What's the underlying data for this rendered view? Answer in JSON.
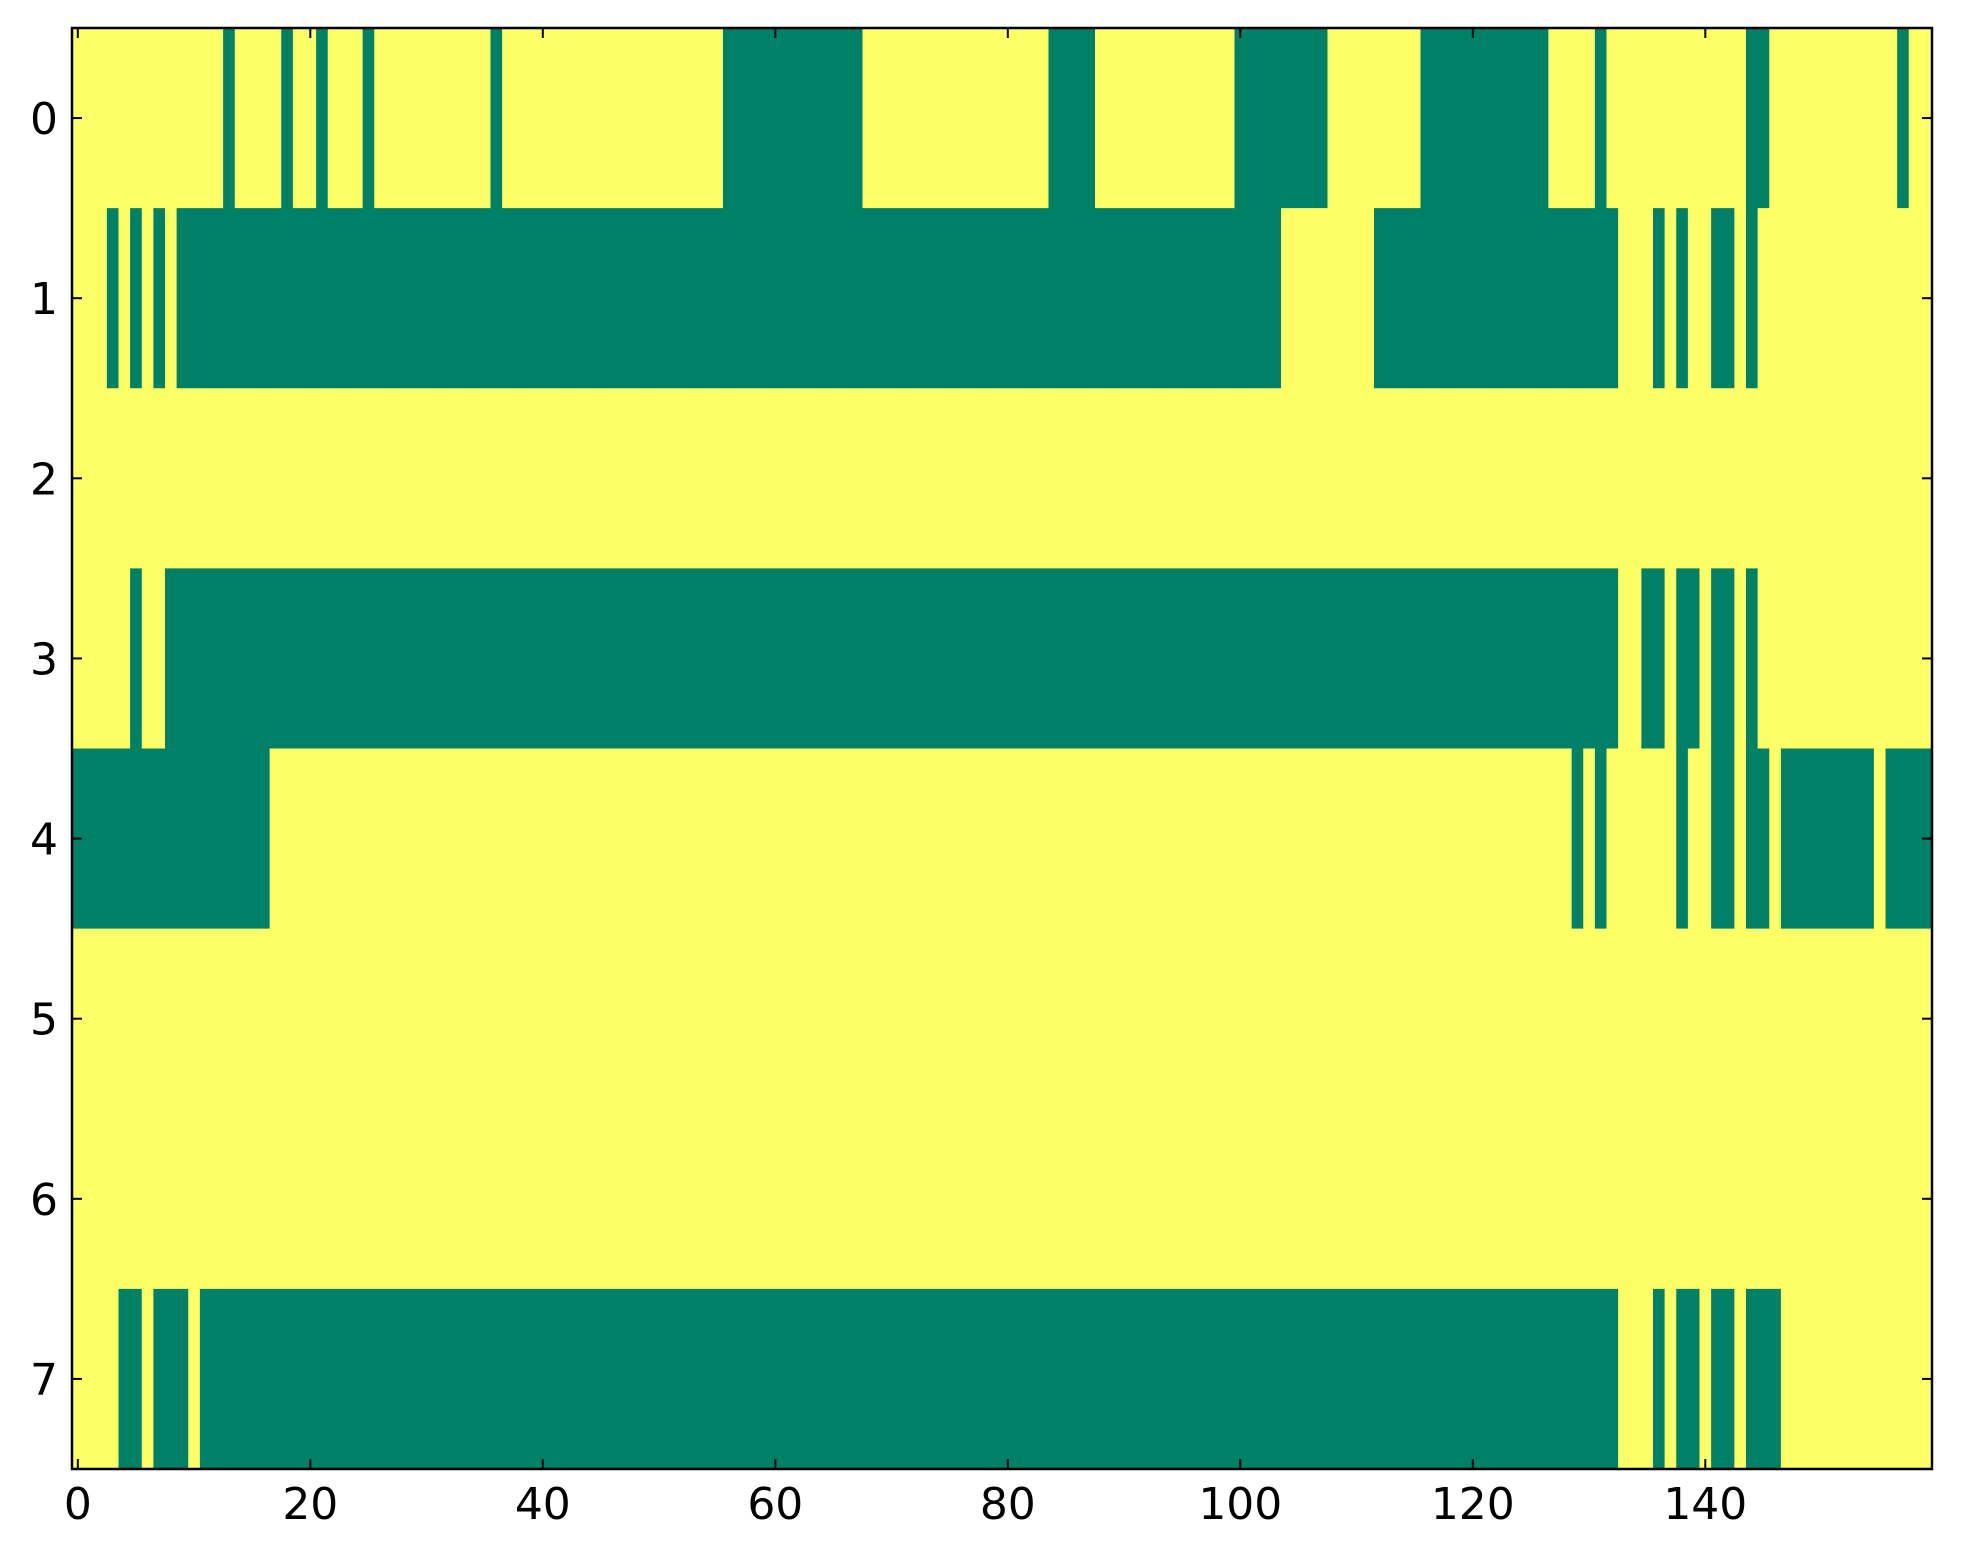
{
  "chart_data": {
    "type": "heatmap",
    "colors": [
      "#008066",
      "#ffff66"
    ],
    "clim": [
      0,
      1
    ],
    "xlim": [
      -0.5,
      159.5
    ],
    "ylim": [
      7.5,
      -0.5
    ],
    "xticks": [
      0,
      20,
      40,
      60,
      80,
      100,
      120,
      140
    ],
    "yticks": [
      0,
      1,
      2,
      3,
      4,
      5,
      6,
      7
    ],
    "z": [
      [
        1,
        1,
        1,
        1,
        1,
        1,
        1,
        1,
        1,
        1,
        1,
        1,
        1,
        0,
        1,
        1,
        1,
        1,
        0,
        1,
        1,
        0,
        1,
        1,
        1,
        0,
        1,
        1,
        1,
        1,
        1,
        1,
        1,
        1,
        1,
        1,
        0,
        1,
        1,
        1,
        1,
        1,
        1,
        1,
        1,
        1,
        1,
        1,
        1,
        1,
        1,
        1,
        1,
        1,
        1,
        1,
        0,
        0,
        0,
        0,
        0,
        0,
        0,
        0,
        0,
        0,
        0,
        0,
        1,
        1,
        1,
        1,
        1,
        1,
        1,
        1,
        1,
        1,
        1,
        1,
        1,
        1,
        1,
        1,
        0,
        0,
        0,
        0,
        1,
        1,
        1,
        1,
        1,
        1,
        1,
        1,
        1,
        1,
        1,
        1,
        0,
        0,
        0,
        0,
        0,
        0,
        0,
        0,
        1,
        1,
        1,
        1,
        1,
        1,
        1,
        1,
        0,
        0,
        0,
        0,
        0,
        0,
        0,
        0,
        0,
        0,
        0,
        1,
        1,
        1,
        1,
        0,
        1,
        1,
        1,
        1,
        1,
        1,
        1,
        1,
        1,
        1,
        1,
        1,
        0,
        0,
        1,
        1,
        1,
        1,
        1,
        1,
        1,
        1,
        1,
        1,
        1,
        0,
        1,
        1
      ],
      [
        1,
        1,
        1,
        0,
        1,
        0,
        1,
        0,
        1,
        0,
        0,
        0,
        0,
        0,
        0,
        0,
        0,
        0,
        0,
        0,
        0,
        0,
        0,
        0,
        0,
        0,
        0,
        0,
        0,
        0,
        0,
        0,
        0,
        0,
        0,
        0,
        0,
        0,
        0,
        0,
        0,
        0,
        0,
        0,
        0,
        0,
        0,
        0,
        0,
        0,
        0,
        0,
        0,
        0,
        0,
        0,
        0,
        0,
        0,
        0,
        0,
        0,
        0,
        0,
        0,
        0,
        0,
        0,
        0,
        0,
        0,
        0,
        0,
        0,
        0,
        0,
        0,
        0,
        0,
        0,
        0,
        0,
        0,
        0,
        0,
        0,
        0,
        0,
        0,
        0,
        0,
        0,
        0,
        0,
        0,
        0,
        0,
        0,
        0,
        0,
        0,
        0,
        0,
        0,
        1,
        1,
        1,
        1,
        1,
        1,
        1,
        1,
        0,
        0,
        0,
        0,
        0,
        0,
        0,
        0,
        0,
        0,
        0,
        0,
        0,
        0,
        0,
        0,
        0,
        0,
        0,
        0,
        0,
        1,
        1,
        1,
        0,
        1,
        0,
        1,
        1,
        0,
        0,
        1,
        0,
        1,
        1,
        1,
        1,
        1,
        1,
        1,
        1,
        1,
        1,
        1,
        1,
        1,
        1,
        1
      ],
      [
        1,
        1,
        1,
        1,
        1,
        1,
        1,
        1,
        1,
        1,
        1,
        1,
        1,
        1,
        1,
        1,
        1,
        1,
        1,
        1,
        1,
        1,
        1,
        1,
        1,
        1,
        1,
        1,
        1,
        1,
        1,
        1,
        1,
        1,
        1,
        1,
        1,
        1,
        1,
        1,
        1,
        1,
        1,
        1,
        1,
        1,
        1,
        1,
        1,
        1,
        1,
        1,
        1,
        1,
        1,
        1,
        1,
        1,
        1,
        1,
        1,
        1,
        1,
        1,
        1,
        1,
        1,
        1,
        1,
        1,
        1,
        1,
        1,
        1,
        1,
        1,
        1,
        1,
        1,
        1,
        1,
        1,
        1,
        1,
        1,
        1,
        1,
        1,
        1,
        1,
        1,
        1,
        1,
        1,
        1,
        1,
        1,
        1,
        1,
        1,
        1,
        1,
        1,
        1,
        1,
        1,
        1,
        1,
        1,
        1,
        1,
        1,
        1,
        1,
        1,
        1,
        1,
        1,
        1,
        1,
        1,
        1,
        1,
        1,
        1,
        1,
        1,
        1,
        1,
        1,
        1,
        1,
        1,
        1,
        1,
        1,
        1,
        1,
        1,
        1,
        1,
        1,
        1,
        1,
        1,
        1,
        1,
        1,
        1,
        1,
        1,
        1,
        1,
        1,
        1,
        1,
        1,
        1,
        1,
        1
      ],
      [
        1,
        1,
        1,
        1,
        1,
        0,
        1,
        1,
        0,
        0,
        0,
        0,
        0,
        0,
        0,
        0,
        0,
        0,
        0,
        0,
        0,
        0,
        0,
        0,
        0,
        0,
        0,
        0,
        0,
        0,
        0,
        0,
        0,
        0,
        0,
        0,
        0,
        0,
        0,
        0,
        0,
        0,
        0,
        0,
        0,
        0,
        0,
        0,
        0,
        0,
        0,
        0,
        0,
        0,
        0,
        0,
        0,
        0,
        0,
        0,
        0,
        0,
        0,
        0,
        0,
        0,
        0,
        0,
        0,
        0,
        0,
        0,
        0,
        0,
        0,
        0,
        0,
        0,
        0,
        0,
        0,
        0,
        0,
        0,
        0,
        0,
        0,
        0,
        0,
        0,
        0,
        0,
        0,
        0,
        0,
        0,
        0,
        0,
        0,
        0,
        0,
        0,
        0,
        0,
        0,
        0,
        0,
        0,
        0,
        0,
        0,
        0,
        0,
        0,
        0,
        0,
        0,
        0,
        0,
        0,
        0,
        0,
        0,
        0,
        0,
        0,
        0,
        0,
        0,
        0,
        0,
        0,
        0,
        1,
        1,
        0,
        0,
        1,
        0,
        0,
        1,
        0,
        0,
        1,
        0,
        1,
        1,
        1,
        1,
        1,
        1,
        1,
        1,
        1,
        1,
        1,
        1,
        1,
        1,
        1
      ],
      [
        0,
        0,
        0,
        0,
        0,
        0,
        0,
        0,
        0,
        0,
        0,
        0,
        0,
        0,
        0,
        0,
        0,
        1,
        1,
        1,
        1,
        1,
        1,
        1,
        1,
        1,
        1,
        1,
        1,
        1,
        1,
        1,
        1,
        1,
        1,
        1,
        1,
        1,
        1,
        1,
        1,
        1,
        1,
        1,
        1,
        1,
        1,
        1,
        1,
        1,
        1,
        1,
        1,
        1,
        1,
        1,
        1,
        1,
        1,
        1,
        1,
        1,
        1,
        1,
        1,
        1,
        1,
        1,
        1,
        1,
        1,
        1,
        1,
        1,
        1,
        1,
        1,
        1,
        1,
        1,
        1,
        1,
        1,
        1,
        1,
        1,
        1,
        1,
        1,
        1,
        1,
        1,
        1,
        1,
        1,
        1,
        1,
        1,
        1,
        1,
        1,
        1,
        1,
        1,
        1,
        1,
        1,
        1,
        1,
        1,
        1,
        1,
        1,
        1,
        1,
        1,
        1,
        1,
        1,
        1,
        1,
        1,
        1,
        1,
        1,
        1,
        1,
        1,
        1,
        0,
        1,
        0,
        1,
        1,
        1,
        1,
        1,
        1,
        0,
        1,
        1,
        0,
        0,
        1,
        0,
        0,
        1,
        0,
        0,
        0,
        0,
        0,
        0,
        0,
        0,
        1,
        0,
        0,
        0,
        0
      ],
      [
        1,
        1,
        1,
        1,
        1,
        1,
        1,
        1,
        1,
        1,
        1,
        1,
        1,
        1,
        1,
        1,
        1,
        1,
        1,
        1,
        1,
        1,
        1,
        1,
        1,
        1,
        1,
        1,
        1,
        1,
        1,
        1,
        1,
        1,
        1,
        1,
        1,
        1,
        1,
        1,
        1,
        1,
        1,
        1,
        1,
        1,
        1,
        1,
        1,
        1,
        1,
        1,
        1,
        1,
        1,
        1,
        1,
        1,
        1,
        1,
        1,
        1,
        1,
        1,
        1,
        1,
        1,
        1,
        1,
        1,
        1,
        1,
        1,
        1,
        1,
        1,
        1,
        1,
        1,
        1,
        1,
        1,
        1,
        1,
        1,
        1,
        1,
        1,
        1,
        1,
        1,
        1,
        1,
        1,
        1,
        1,
        1,
        1,
        1,
        1,
        1,
        1,
        1,
        1,
        1,
        1,
        1,
        1,
        1,
        1,
        1,
        1,
        1,
        1,
        1,
        1,
        1,
        1,
        1,
        1,
        1,
        1,
        1,
        1,
        1,
        1,
        1,
        1,
        1,
        1,
        1,
        1,
        1,
        1,
        1,
        1,
        1,
        1,
        1,
        1,
        1,
        1,
        1,
        1,
        1,
        1,
        1,
        1,
        1,
        1,
        1,
        1,
        1,
        1,
        1,
        1,
        1,
        1,
        1,
        1
      ],
      [
        1,
        1,
        1,
        1,
        1,
        1,
        1,
        1,
        1,
        1,
        1,
        1,
        1,
        1,
        1,
        1,
        1,
        1,
        1,
        1,
        1,
        1,
        1,
        1,
        1,
        1,
        1,
        1,
        1,
        1,
        1,
        1,
        1,
        1,
        1,
        1,
        1,
        1,
        1,
        1,
        1,
        1,
        1,
        1,
        1,
        1,
        1,
        1,
        1,
        1,
        1,
        1,
        1,
        1,
        1,
        1,
        1,
        1,
        1,
        1,
        1,
        1,
        1,
        1,
        1,
        1,
        1,
        1,
        1,
        1,
        1,
        1,
        1,
        1,
        1,
        1,
        1,
        1,
        1,
        1,
        1,
        1,
        1,
        1,
        1,
        1,
        1,
        1,
        1,
        1,
        1,
        1,
        1,
        1,
        1,
        1,
        1,
        1,
        1,
        1,
        1,
        1,
        1,
        1,
        1,
        1,
        1,
        1,
        1,
        1,
        1,
        1,
        1,
        1,
        1,
        1,
        1,
        1,
        1,
        1,
        1,
        1,
        1,
        1,
        1,
        1,
        1,
        1,
        1,
        1,
        1,
        1,
        1,
        1,
        1,
        1,
        1,
        1,
        1,
        1,
        1,
        1,
        1,
        1,
        1,
        1,
        1,
        1,
        1,
        1,
        1,
        1,
        1,
        1,
        1,
        1,
        1,
        1,
        1,
        1
      ],
      [
        1,
        1,
        1,
        1,
        0,
        0,
        1,
        0,
        0,
        0,
        1,
        0,
        0,
        0,
        0,
        0,
        0,
        0,
        0,
        0,
        0,
        0,
        0,
        0,
        0,
        0,
        0,
        0,
        0,
        0,
        0,
        0,
        0,
        0,
        0,
        0,
        0,
        0,
        0,
        0,
        0,
        0,
        0,
        0,
        0,
        0,
        0,
        0,
        0,
        0,
        0,
        0,
        0,
        0,
        0,
        0,
        0,
        0,
        0,
        0,
        0,
        0,
        0,
        0,
        0,
        0,
        0,
        0,
        0,
        0,
        0,
        0,
        0,
        0,
        0,
        0,
        0,
        0,
        0,
        0,
        0,
        0,
        0,
        0,
        0,
        0,
        0,
        0,
        0,
        0,
        0,
        0,
        0,
        0,
        0,
        0,
        0,
        0,
        0,
        0,
        0,
        0,
        0,
        0,
        0,
        0,
        0,
        0,
        0,
        0,
        0,
        0,
        0,
        0,
        0,
        0,
        0,
        0,
        0,
        0,
        0,
        0,
        0,
        0,
        0,
        0,
        0,
        0,
        0,
        0,
        0,
        0,
        0,
        1,
        1,
        1,
        0,
        1,
        0,
        0,
        1,
        0,
        0,
        1,
        0,
        0,
        0,
        1,
        1,
        1,
        1,
        1,
        1,
        1,
        1,
        1,
        1,
        1,
        1,
        1
      ]
    ]
  }
}
